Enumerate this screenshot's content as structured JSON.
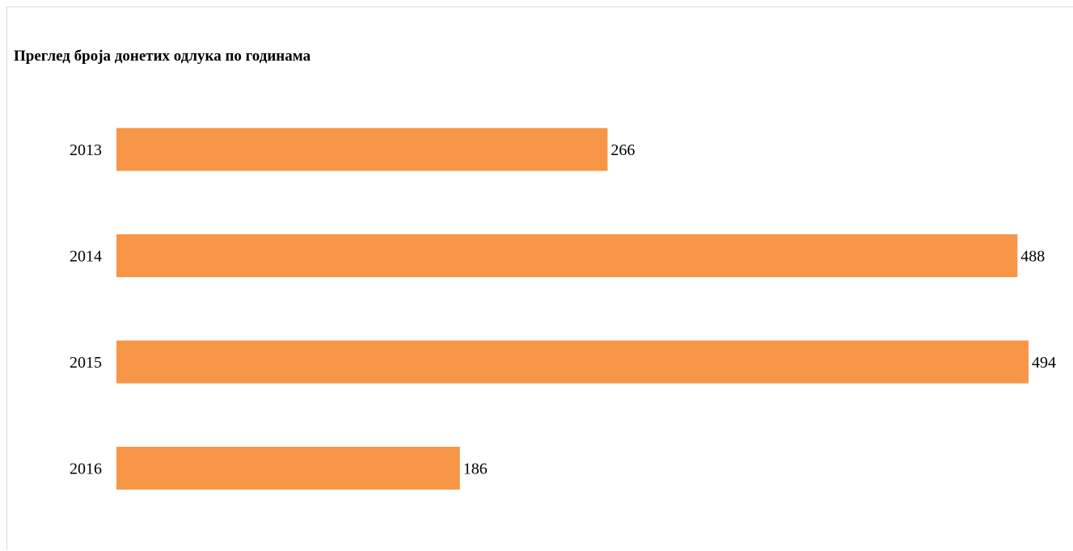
{
  "chart_data": {
    "type": "bar",
    "orientation": "horizontal",
    "title": "Преглед броја донетих одлука по годинама",
    "categories": [
      "2013",
      "2014",
      "2015",
      "2016"
    ],
    "values": [
      266,
      488,
      494,
      186
    ],
    "xlim": [
      0,
      494
    ],
    "grid": false,
    "data_labels": true,
    "bar_color": "#F79646"
  }
}
